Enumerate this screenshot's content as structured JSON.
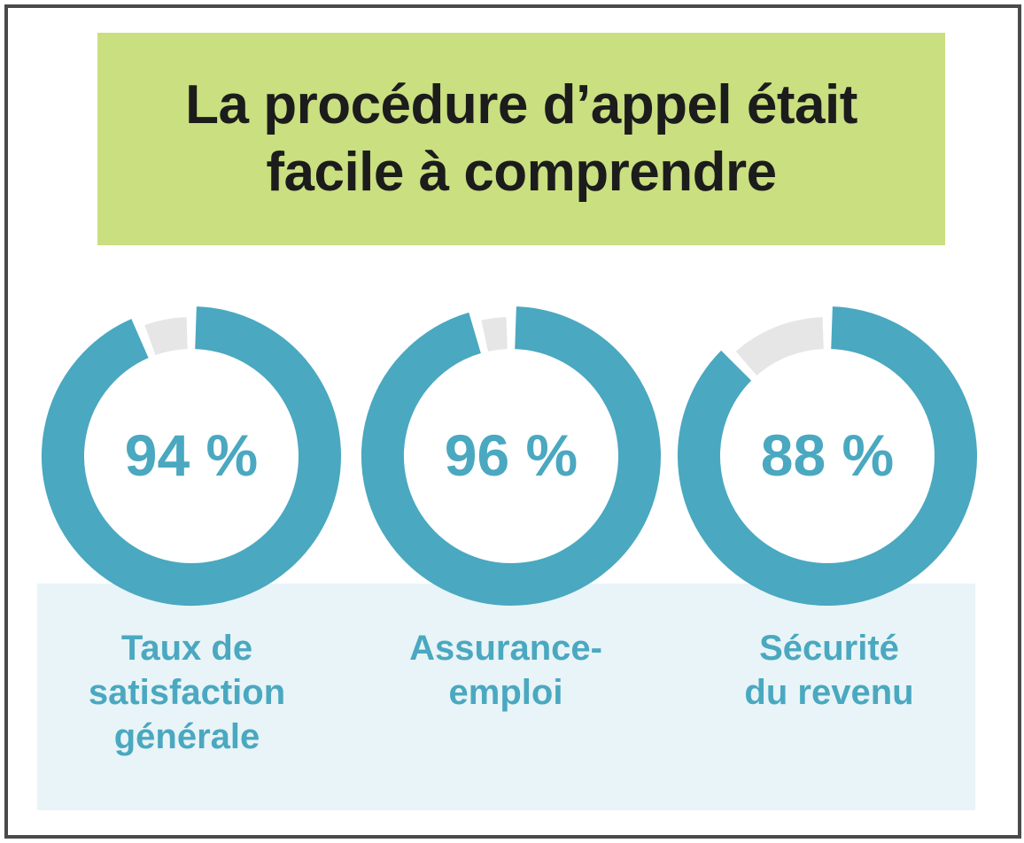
{
  "title_lines": [
    "La procédure d’appel était",
    "facile à comprendre"
  ],
  "colors": {
    "title_background": "#cadf80",
    "filled": "#4aa8c0",
    "remainder": "#e6e6e6",
    "label_band": "#e8f4f7",
    "frame": "#4a4a4a"
  },
  "chart_data": {
    "type": "pie",
    "variant": "donut",
    "title": "La procédure d’appel était facile à comprendre",
    "unit": "%",
    "categories": [
      "Taux de satisfaction générale",
      "Assurance-emploi",
      "Sécurité du revenu"
    ],
    "values": [
      94,
      96,
      88
    ],
    "value_labels": [
      "94 %",
      "96 %",
      "88 %"
    ],
    "label_lines": [
      [
        "Taux de",
        "satisfaction",
        "générale"
      ],
      [
        "Assurance-",
        "emploi"
      ],
      [
        "Sécurité",
        "du revenu"
      ]
    ]
  }
}
